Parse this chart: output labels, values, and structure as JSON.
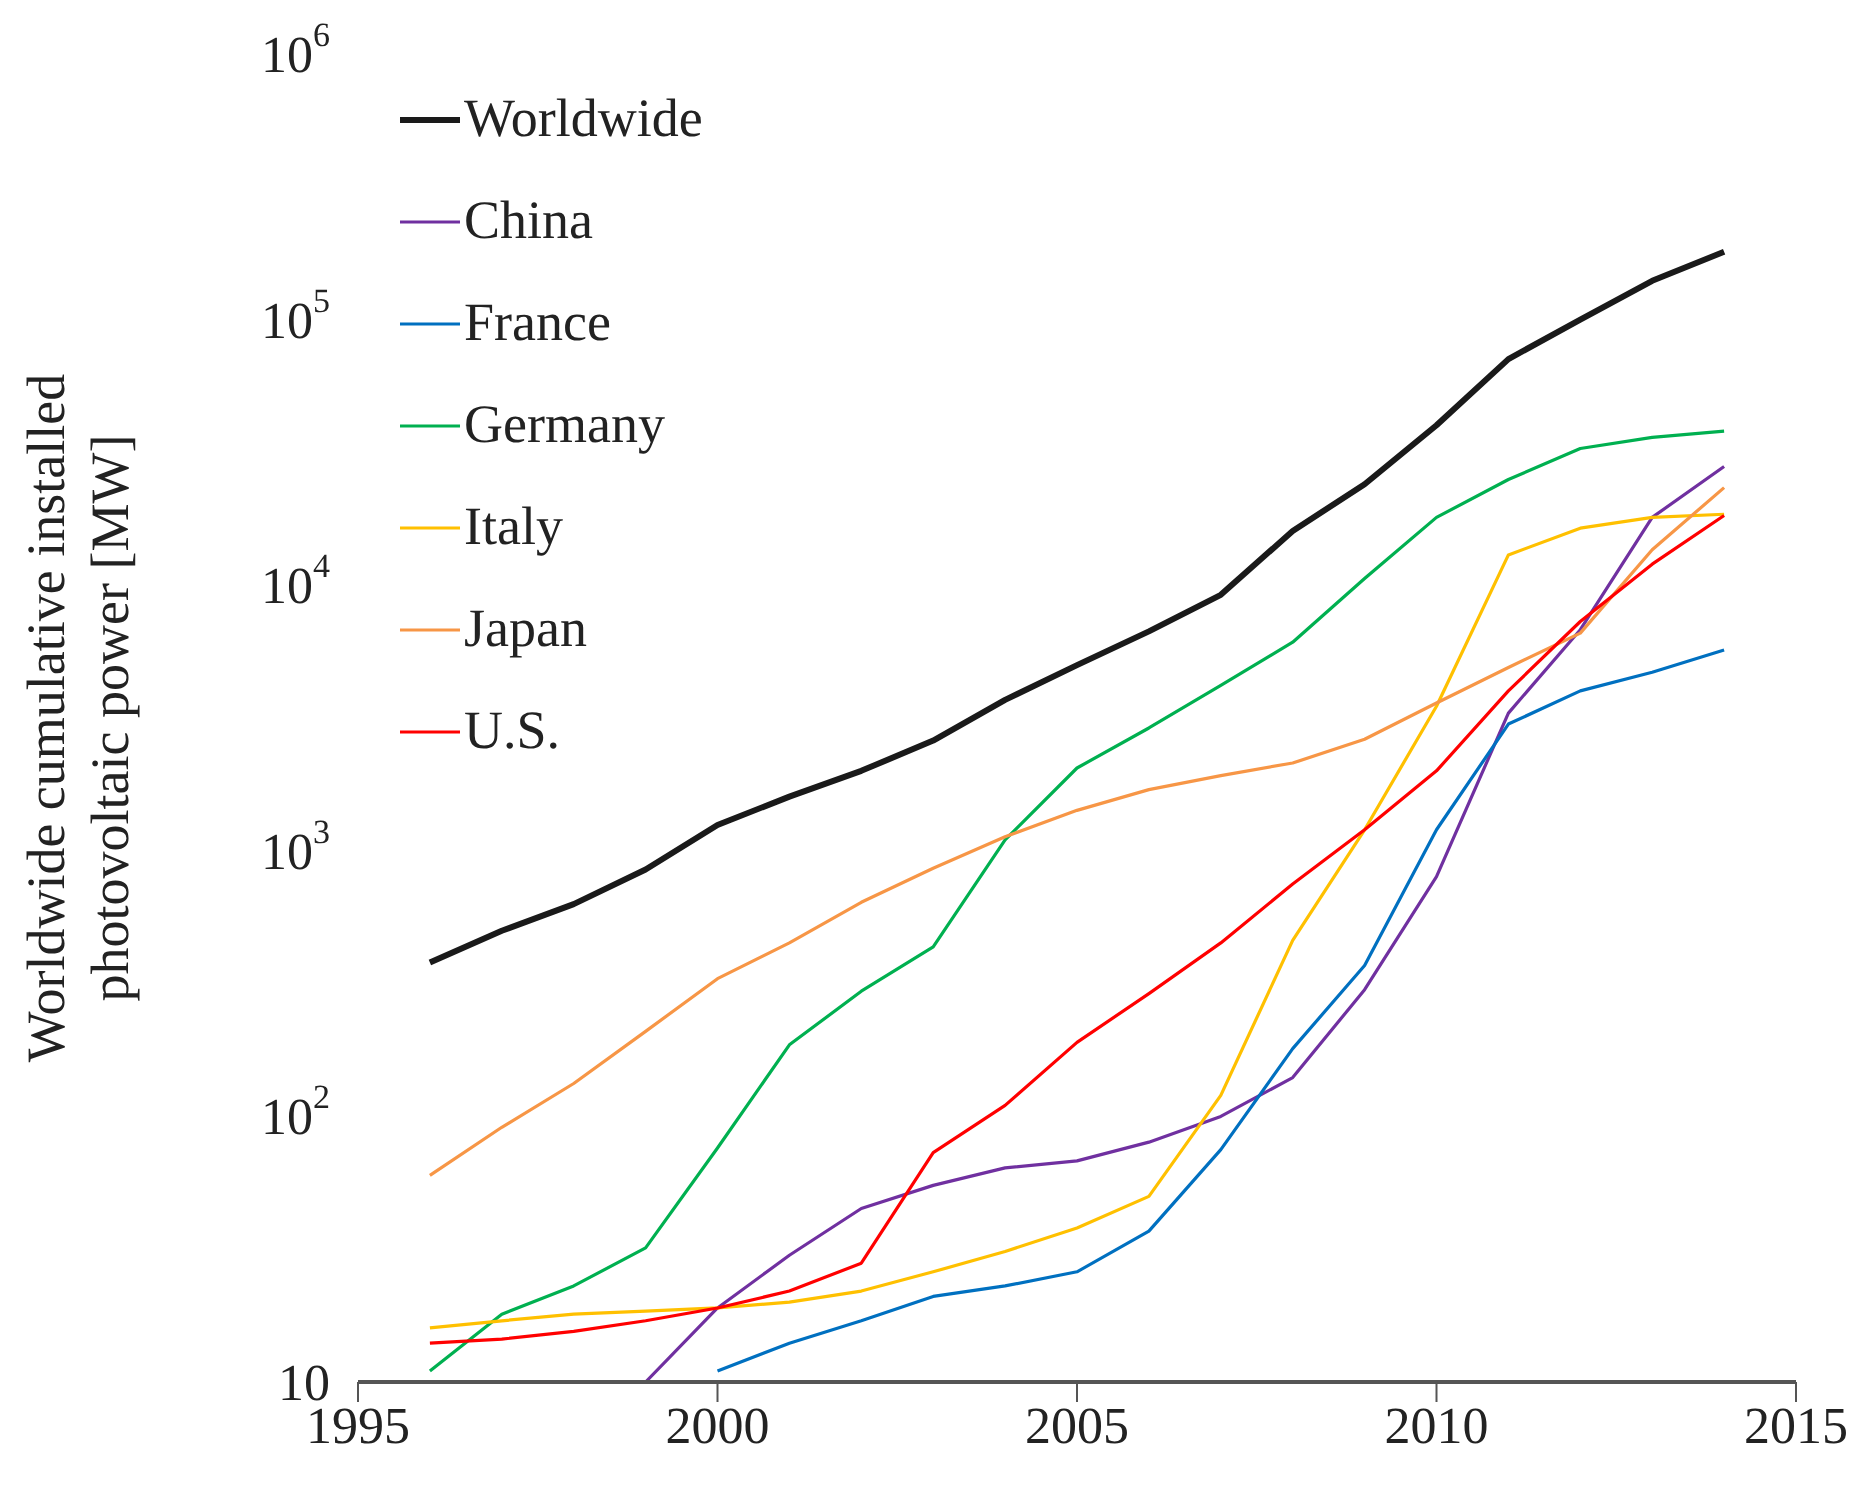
{
  "chart_data": {
    "type": "line",
    "ylabel": "Worldwide cumulative installed photovoltaic power [MW]",
    "x": [
      1996,
      1997,
      1998,
      1999,
      2000,
      2001,
      2002,
      2003,
      2004,
      2005,
      2006,
      2007,
      2008,
      2009,
      2010,
      2011,
      2012,
      2013,
      2014
    ],
    "series": [
      {
        "name": "Worldwide",
        "color": "#1a1a1a",
        "values": [
          380,
          500,
          630,
          850,
          1250,
          1600,
          2000,
          2600,
          3700,
          5000,
          6700,
          9200,
          16000,
          24000,
          40000,
          71000,
          100000,
          140000,
          180000
        ]
      },
      {
        "name": "China",
        "color": "#7030a0",
        "values": [
          null,
          null,
          null,
          10,
          19,
          30,
          45,
          55,
          64,
          68,
          80,
          100,
          140,
          300,
          800,
          3300,
          6800,
          18000,
          28000
        ]
      },
      {
        "name": "France",
        "color": "#0070c0",
        "values": [
          null,
          null,
          null,
          null,
          11,
          14,
          17,
          21,
          23,
          26,
          37,
          75,
          180,
          370,
          1200,
          3000,
          4000,
          4700,
          5700
        ]
      },
      {
        "name": "Germany",
        "color": "#00b050",
        "values": [
          11,
          18,
          23,
          32,
          76,
          186,
          296,
          435,
          1100,
          2050,
          2900,
          4200,
          6100,
          10600,
          18000,
          25000,
          32700,
          36000,
          38000
        ]
      },
      {
        "name": "Italy",
        "color": "#ffc000",
        "values": [
          16,
          17,
          18,
          18.5,
          19,
          20,
          22,
          26,
          31,
          38,
          50,
          120,
          460,
          1200,
          3500,
          13000,
          16400,
          18000,
          18500
        ]
      },
      {
        "name": "Japan",
        "color": "#f79646",
        "values": [
          60,
          91,
          133,
          209,
          330,
          450,
          640,
          860,
          1130,
          1420,
          1700,
          1920,
          2140,
          2630,
          3600,
          4900,
          6600,
          13600,
          23300
        ]
      },
      {
        "name": "U.S.",
        "color": "#ff0000",
        "values": [
          14,
          14.5,
          15.5,
          17,
          19,
          22,
          28,
          73,
          110,
          190,
          290,
          450,
          750,
          1200,
          2000,
          4000,
          7300,
          12000,
          18300
        ]
      }
    ],
    "log": "y",
    "xlim": [
      1995,
      2015
    ],
    "xticks": [
      1995,
      2000,
      2005,
      2010,
      2015
    ],
    "ylim": [
      10,
      1000000
    ],
    "yticks": [
      {
        "value": 10,
        "label": "10"
      },
      {
        "value": 100,
        "label": "10$^{2}$"
      },
      {
        "value": 1000,
        "label": "10$^{3}$"
      },
      {
        "value": 10000,
        "label": "10$^{4}$"
      },
      {
        "value": 100000,
        "label": "10$^{5}$"
      },
      {
        "value": 1000000,
        "label": "10$^{6}$"
      }
    ],
    "grid": false,
    "legend": "top left",
    "marker": "none",
    "line_style": "solid"
  }
}
